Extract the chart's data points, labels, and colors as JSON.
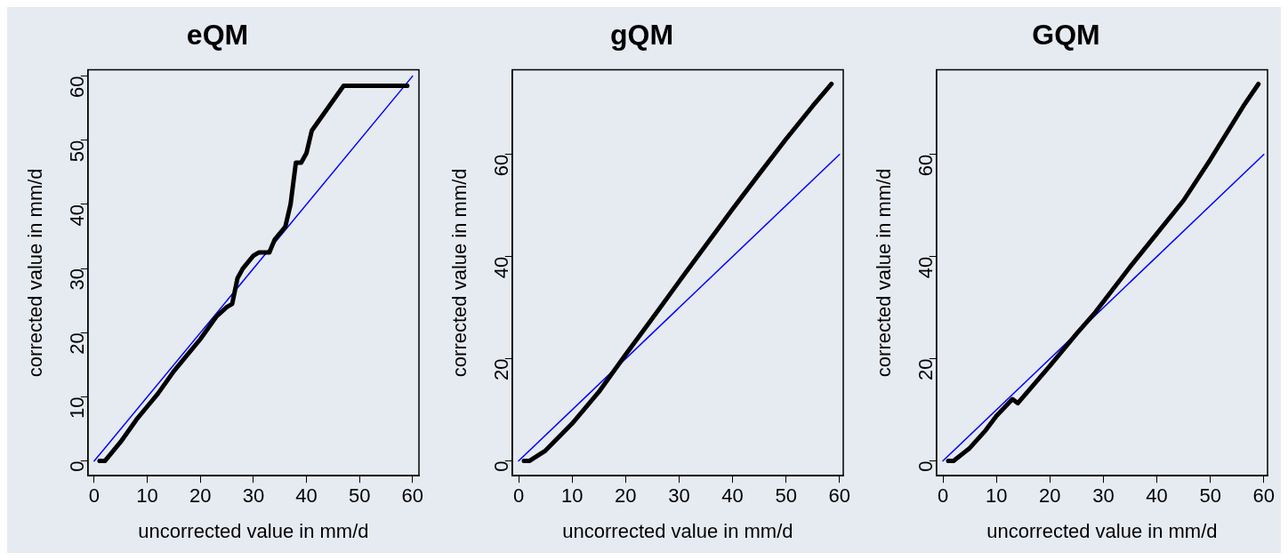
{
  "chart_data": [
    {
      "type": "line",
      "title": "eQM",
      "xlabel": "uncorrected value in mm/d",
      "ylabel": "corrected value in mm/d",
      "xlim": [
        -1.2,
        61.2
      ],
      "ylim": [
        -2.3,
        61
      ],
      "xticks": [
        0,
        10,
        20,
        30,
        40,
        50,
        60
      ],
      "yticks": [
        0,
        10,
        20,
        30,
        40,
        50,
        60
      ],
      "series": [
        {
          "color": "#000000",
          "x": [
            1,
            2,
            5,
            8,
            10,
            12,
            15,
            17,
            20,
            23,
            25,
            26,
            27,
            28,
            30,
            31,
            33,
            34,
            36,
            37,
            38,
            39,
            40,
            41,
            47,
            59
          ],
          "values": [
            0,
            0,
            3,
            6.5,
            8.5,
            10.5,
            14,
            16,
            19,
            22.5,
            24,
            24.5,
            28.5,
            30,
            32,
            32.5,
            32.5,
            34.5,
            36.5,
            40,
            46.5,
            46.5,
            48,
            51.5,
            58.5,
            58.5
          ]
        },
        {
          "color": "#0000ff",
          "x": [
            0,
            60
          ],
          "values": [
            0,
            60
          ]
        }
      ]
    },
    {
      "type": "line",
      "title": "gQM",
      "xlabel": "uncorrected value in mm/d",
      "ylabel": "corrected value in mm/d",
      "xlim": [
        -1.2,
        60.7
      ],
      "ylim": [
        -2.9,
        76.6
      ],
      "xticks": [
        0,
        10,
        20,
        30,
        40,
        50,
        60
      ],
      "yticks": [
        0,
        20,
        40,
        60
      ],
      "series": [
        {
          "color": "#000000",
          "x": [
            1,
            2,
            5,
            10,
            15,
            20,
            25,
            30,
            35,
            40,
            45,
            50,
            55,
            58.5
          ],
          "values": [
            0,
            0,
            2,
            7.3,
            13.5,
            20.8,
            27.9,
            35.1,
            42.2,
            49.3,
            56.2,
            63,
            69.5,
            73.8
          ]
        },
        {
          "color": "#0000ff",
          "x": [
            0,
            60
          ],
          "values": [
            0,
            60
          ]
        }
      ]
    },
    {
      "type": "line",
      "title": "GQM",
      "xlabel": "uncorrected value in mm/d",
      "ylabel": "corrected value in mm/d",
      "xlim": [
        -1.2,
        60.7
      ],
      "ylim": [
        -2.9,
        76.6
      ],
      "xticks": [
        0,
        10,
        20,
        30,
        40,
        50,
        60
      ],
      "yticks": [
        0,
        20,
        40,
        60
      ],
      "series": [
        {
          "color": "#000000",
          "x": [
            1,
            2,
            5,
            8,
            10,
            13,
            14,
            20,
            25,
            28.5,
            35,
            40,
            45,
            50,
            56.2,
            59
          ],
          "values": [
            0,
            0,
            2.5,
            6,
            8.8,
            12.1,
            11.3,
            18.6,
            24.9,
            29.1,
            38,
            44.5,
            51,
            59,
            69.5,
            73.8
          ]
        },
        {
          "color": "#0000ff",
          "x": [
            0,
            60
          ],
          "values": [
            0,
            60
          ]
        }
      ]
    }
  ]
}
